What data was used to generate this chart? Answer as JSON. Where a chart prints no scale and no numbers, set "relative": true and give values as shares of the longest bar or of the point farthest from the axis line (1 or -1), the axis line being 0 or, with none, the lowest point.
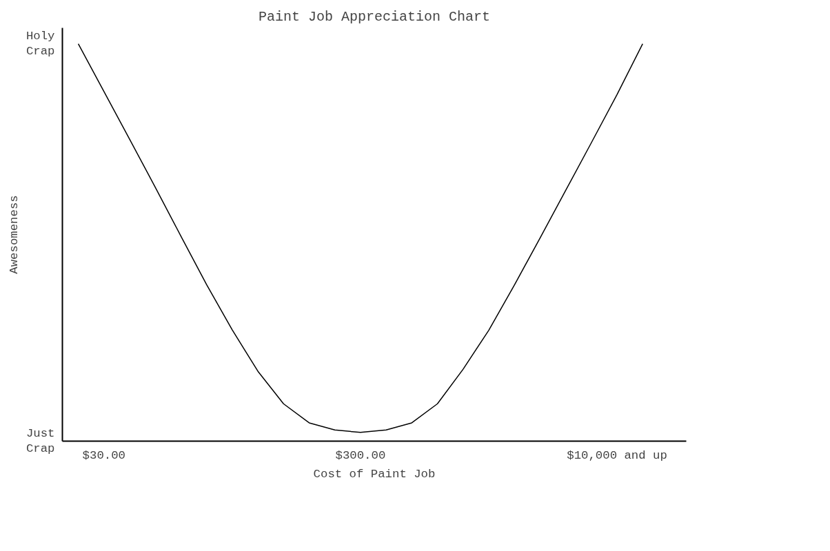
{
  "chart_data": {
    "type": "line",
    "title": "Paint Job Appreciation Chart",
    "xlabel": "Cost of Paint Job",
    "ylabel": "Awesomeness",
    "relative": true,
    "categories": [
      null,
      "$30.00",
      null,
      null,
      null,
      null,
      null,
      null,
      null,
      null,
      null,
      "$300.00",
      null,
      null,
      null,
      null,
      null,
      null,
      null,
      null,
      null,
      "$10,000 and up",
      null
    ],
    "annotations": [
      "Holy\nCrap",
      "Just\nCrap"
    ],
    "grid": false,
    "marker": "none",
    "line_style": "solid",
    "series": [
      {
        "color": "#000000",
        "values": [
          1,
          0.88,
          0.76,
          0.639,
          0.516,
          0.394,
          0.28,
          0.176,
          0.094,
          0.046,
          0.028,
          0.022,
          0.028,
          0.046,
          0.094,
          0.181,
          0.279,
          0.393,
          0.511,
          0.631,
          0.751,
          0.872,
          1
        ]
      }
    ]
  }
}
